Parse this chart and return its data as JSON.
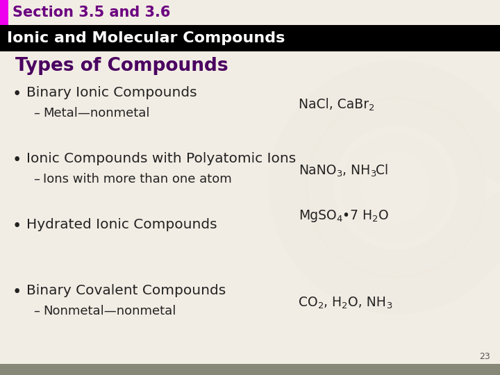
{
  "section_title": "Section 3.5 and 3.6",
  "section_title_color": "#6b0080",
  "header_text": "Ionic and Molecular Compounds",
  "header_bg_color": "#000000",
  "header_text_color": "#ffffff",
  "slide_bg_color": "#f2ede4",
  "section_bar_color": "#ee00ee",
  "slide_title": "Types of Compounds",
  "slide_title_color": "#4a0060",
  "body_color": "#222222",
  "page_number": "23",
  "watermark_color": "#ddd5cc",
  "bottom_bar_color": "#888878",
  "top_bar_height": 36,
  "header_bar_height": 38,
  "accent_bar_width": 12
}
